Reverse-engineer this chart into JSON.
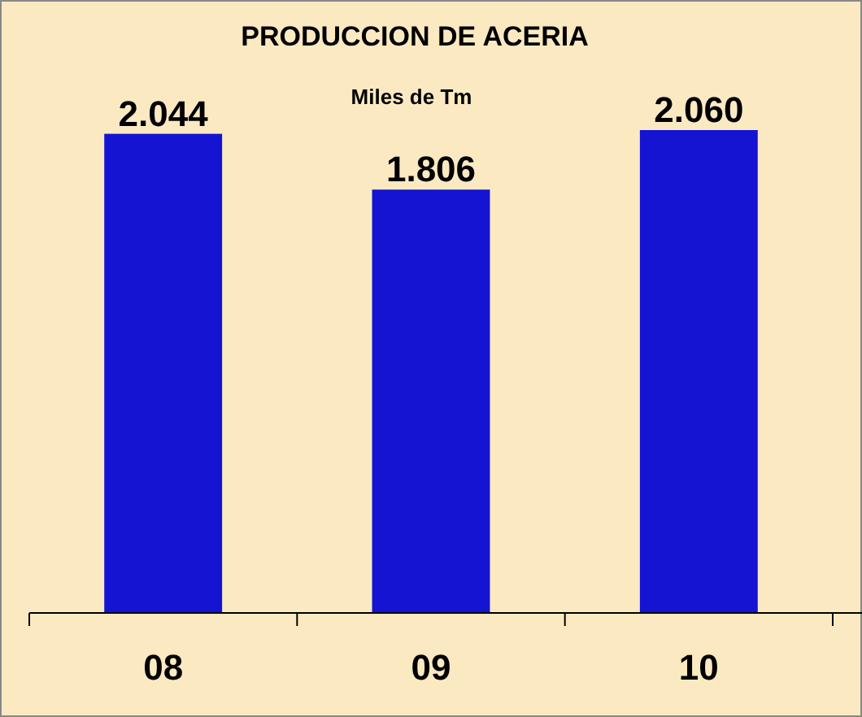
{
  "chart_data": {
    "type": "bar",
    "title": "PRODUCCION DE ACERIA",
    "subtitle": "Miles de Tm",
    "categories": [
      "08",
      "09",
      "10"
    ],
    "values": [
      2044,
      1806,
      2060
    ],
    "value_labels": [
      "2.044",
      "1.806",
      "2.060"
    ],
    "color": "#1414d2",
    "tick_labels": "x",
    "grid": false
  }
}
